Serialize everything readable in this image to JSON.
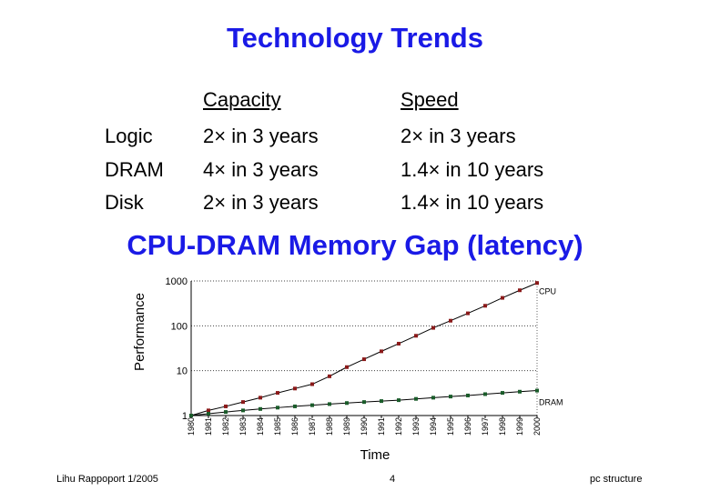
{
  "slide": {
    "title": "Technology Trends",
    "table": {
      "headers": {
        "capacity": "Capacity",
        "speed": "Speed"
      },
      "rows": [
        {
          "name": "Logic",
          "capacity": "2×  in  3 years",
          "speed": "2× in 3 years"
        },
        {
          "name": "DRAM",
          "capacity": "4× in  3 years",
          "speed": "1.4× in 10 years"
        },
        {
          "name": "Disk",
          "capacity": "2× in  3 years",
          "speed": "1.4× in 10 years"
        }
      ]
    },
    "subtitle": "CPU-DRAM Memory Gap (latency)"
  },
  "chart_data": {
    "type": "line",
    "title": "CPU-DRAM Memory Gap (latency)",
    "xlabel": "Time",
    "ylabel": "Performance",
    "yscale": "log",
    "ylim": [
      1,
      1000
    ],
    "yticks": [
      "1000",
      "100",
      "10",
      "1"
    ],
    "categories": [
      "1980",
      "1981",
      "1982",
      "1983",
      "1984",
      "1985",
      "1986",
      "1987",
      "1988",
      "1989",
      "1990",
      "1991",
      "1992",
      "1993",
      "1994",
      "1995",
      "1996",
      "1997",
      "1998",
      "1999",
      "2000"
    ],
    "series": [
      {
        "name": "CPU",
        "color": "#8b1a1a",
        "values": [
          1,
          1.3,
          1.6,
          2.0,
          2.5,
          3.2,
          4.0,
          5.0,
          7.5,
          12,
          18,
          27,
          40,
          60,
          90,
          130,
          190,
          280,
          420,
          620,
          900
        ]
      },
      {
        "name": "DRAM",
        "color": "#1a5c2a",
        "values": [
          1,
          1.1,
          1.2,
          1.3,
          1.4,
          1.5,
          1.6,
          1.7,
          1.8,
          1.9,
          2.0,
          2.1,
          2.2,
          2.35,
          2.5,
          2.65,
          2.8,
          3.0,
          3.2,
          3.4,
          3.6
        ]
      }
    ]
  },
  "footer": {
    "left": "Lihu Rappoport 1/2005",
    "center": "4",
    "right": "pc structure"
  }
}
